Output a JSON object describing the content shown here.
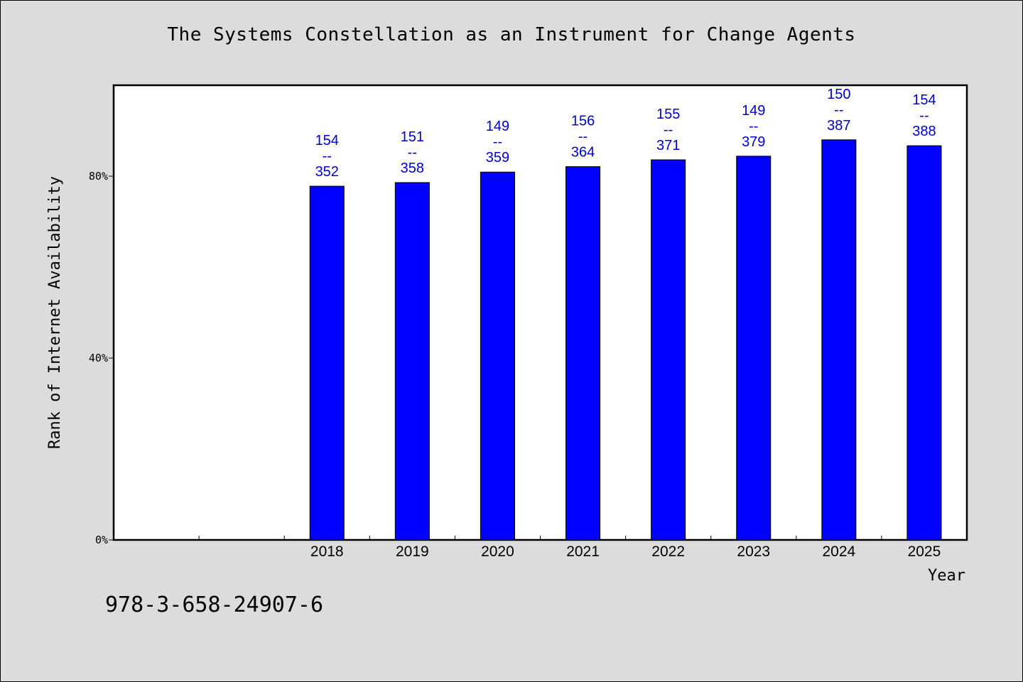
{
  "chart_data": {
    "type": "bar",
    "title": "The Systems Constellation as an Instrument for Change Agents",
    "xlabel": "Year",
    "ylabel": "Rank of Internet Availability",
    "categories": [
      "",
      "",
      "2018",
      "2019",
      "2020",
      "2021",
      "2022",
      "2023",
      "2024",
      "2025"
    ],
    "values": [
      null,
      null,
      77.8,
      78.6,
      80.9,
      82.1,
      83.6,
      84.4,
      88.0,
      86.7
    ],
    "data_labels": [
      null,
      null,
      [
        "154",
        "--",
        "352"
      ],
      [
        "151",
        "--",
        "358"
      ],
      [
        "149",
        "--",
        "359"
      ],
      [
        "156",
        "--",
        "364"
      ],
      [
        "155",
        "--",
        "371"
      ],
      [
        "149",
        "--",
        "379"
      ],
      [
        "150",
        "--",
        "387"
      ],
      [
        "154",
        "--",
        "388"
      ]
    ],
    "ylim": [
      0,
      100
    ],
    "yticks": [
      0,
      40,
      80
    ],
    "ytick_labels": [
      "0%",
      "40%",
      "80%"
    ],
    "bar_color": "#0000ff",
    "label_color": "#0000cc",
    "grid": false,
    "legend": "none"
  },
  "footer": {
    "isbn": "978-3-658-24907-6"
  }
}
